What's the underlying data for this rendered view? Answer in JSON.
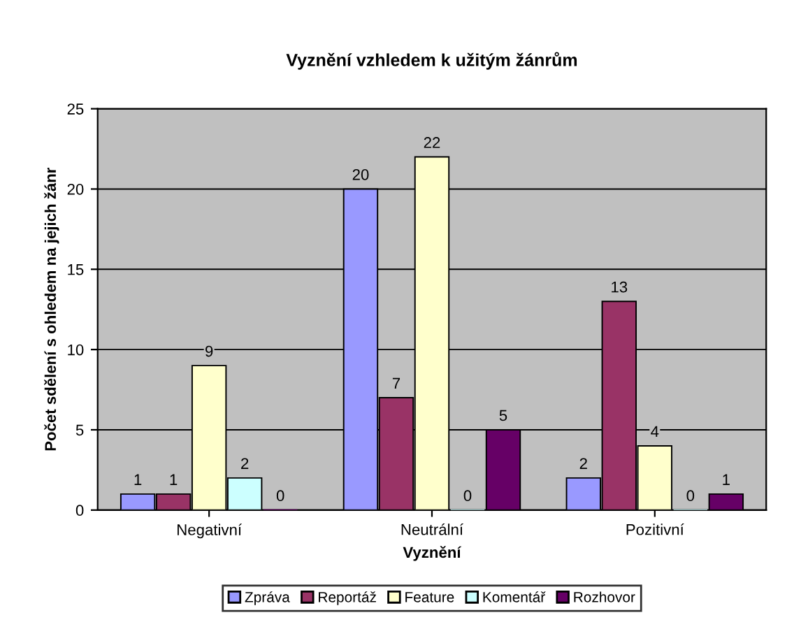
{
  "chart_data": {
    "type": "bar",
    "title": "Vyznění vzhledem k užitým žánrům",
    "xlabel": "Vyznění",
    "ylabel": "Počet sdělení s ohledem na jejich žánr",
    "categories": [
      "Negativní",
      "Neutrální",
      "Pozitivní"
    ],
    "series": [
      {
        "name": "Zpráva",
        "color": "#9999ff",
        "values": [
          1,
          20,
          2
        ]
      },
      {
        "name": "Reportáž",
        "color": "#993366",
        "values": [
          1,
          7,
          13
        ]
      },
      {
        "name": "Feature",
        "color": "#ffffcc",
        "values": [
          9,
          22,
          4
        ]
      },
      {
        "name": "Komentář",
        "color": "#ccffff",
        "values": [
          2,
          0,
          0
        ]
      },
      {
        "name": "Rozhovor",
        "color": "#660066",
        "values": [
          0,
          5,
          1
        ]
      }
    ],
    "ylim": [
      0,
      25
    ],
    "yticks": [
      0,
      5,
      10,
      15,
      20,
      25
    ],
    "grid": "y",
    "legend": "bottom",
    "data_labels": true
  }
}
